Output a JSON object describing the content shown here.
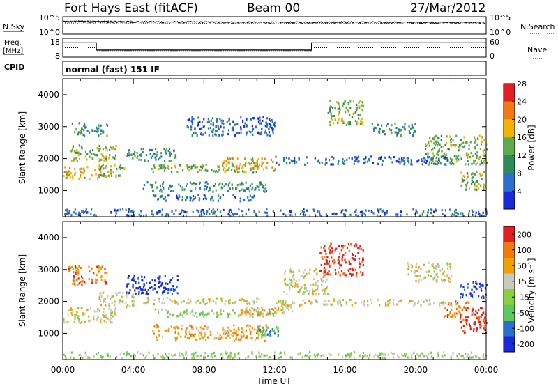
{
  "header": {
    "radar": "Fort Hays East (fitACF)",
    "beam": "Beam 00",
    "date": "27/Mar/2012",
    "mode": "normal (fast) 151 IF"
  },
  "side_labels": {
    "nsky": "N.Sky",
    "nsearch": "N.Search",
    "freq": "Freq.",
    "freq_unit": "[MHz]",
    "nave": "Nave",
    "cpid": "CPID"
  },
  "chart_data": [
    {
      "type": "line",
      "panel": "noise",
      "y_scale": "log",
      "ylim": [
        1,
        100000
      ],
      "left_ticks": [
        "10^5",
        "10^0"
      ],
      "right_ticks": [
        "10^5",
        "10^0"
      ],
      "series": [
        {
          "name": "N.Sky",
          "style": "solid",
          "x": [
            0,
            1,
            2,
            3,
            4,
            6,
            8,
            10,
            12,
            14,
            16,
            18,
            20,
            22,
            24
          ],
          "values": [
            3000,
            3500,
            3200,
            3000,
            2800,
            2400,
            2200,
            2000,
            1800,
            2000,
            2200,
            2000,
            1800,
            1700,
            1600
          ]
        },
        {
          "name": "N.Search",
          "style": "dotted",
          "x": [
            0,
            2,
            4,
            6,
            8,
            10,
            12,
            14,
            16,
            18,
            20,
            22,
            24
          ],
          "values": [
            1500,
            1600,
            1500,
            1400,
            1300,
            1200,
            1100,
            1200,
            1300,
            1200,
            1100,
            1000,
            950
          ]
        }
      ]
    },
    {
      "type": "line",
      "panel": "frequency",
      "left_ticks": [
        "18",
        "8"
      ],
      "right_ticks": [
        "60",
        "0"
      ],
      "series": [
        {
          "name": "Freq.",
          "style": "solid",
          "x": [
            0,
            1.9,
            1.9,
            14.1,
            14.1,
            24
          ],
          "values": [
            15.2,
            15.2,
            10.5,
            10.5,
            15.2,
            15.2
          ]
        },
        {
          "name": "Nave",
          "style": "dotted",
          "x": [
            0,
            1.9,
            1.9,
            14.1,
            14.1,
            24
          ],
          "values": [
            12,
            12,
            10,
            10,
            12,
            12
          ]
        }
      ]
    },
    {
      "type": "heatmap",
      "panel": "power",
      "xlabel": "",
      "ylabel": "Slant Range [km]",
      "xlim": [
        0,
        24
      ],
      "ylim": [
        180,
        4500
      ],
      "y_ticks": [
        1000,
        2000,
        3000,
        4000
      ],
      "colorbar": {
        "label": "Power [dB]",
        "ticks": [
          "4",
          "8",
          "12",
          "16",
          "20",
          "24",
          "28"
        ],
        "colors": [
          "#1a2ad8",
          "#2a6fd0",
          "#2f8a5a",
          "#5faa4a",
          "#f0b400",
          "#f07a10",
          "#e02020"
        ]
      },
      "features": [
        {
          "t0": 0.0,
          "t1": 2.2,
          "r0": 1350,
          "r1": 1750,
          "level": 4
        },
        {
          "t0": 0.4,
          "t1": 3.0,
          "r0": 1900,
          "r1": 2400,
          "level": 3
        },
        {
          "t0": 0.5,
          "t1": 2.5,
          "r0": 2700,
          "r1": 3100,
          "level": 2
        },
        {
          "t0": 2.0,
          "t1": 3.5,
          "r0": 1400,
          "r1": 1800,
          "level": 3
        },
        {
          "t0": 3.6,
          "t1": 6.5,
          "r0": 1900,
          "r1": 2300,
          "level": 2
        },
        {
          "t0": 5.0,
          "t1": 11.0,
          "r0": 1550,
          "r1": 1800,
          "level": 3
        },
        {
          "t0": 4.5,
          "t1": 11.5,
          "r0": 950,
          "r1": 1250,
          "level": 2
        },
        {
          "t0": 5.0,
          "t1": 11.0,
          "r0": 650,
          "r1": 850,
          "level": 1
        },
        {
          "t0": 9.0,
          "t1": 12.0,
          "r0": 1600,
          "r1": 2000,
          "level": 4
        },
        {
          "t0": 7.0,
          "t1": 12.0,
          "r0": 2700,
          "r1": 3300,
          "level": 1
        },
        {
          "t0": 15.0,
          "t1": 17.0,
          "r0": 3000,
          "r1": 3800,
          "level": 3
        },
        {
          "t0": 17.5,
          "t1": 20.0,
          "r0": 2700,
          "r1": 3100,
          "level": 2
        },
        {
          "t0": 20.5,
          "t1": 24.0,
          "r0": 1800,
          "r1": 2700,
          "level": 3
        },
        {
          "t0": 22.5,
          "t1": 24.0,
          "r0": 1000,
          "r1": 1600,
          "level": 3
        },
        {
          "t0": 12.0,
          "t1": 22.0,
          "r0": 1800,
          "r1": 2050,
          "level": 1
        },
        {
          "t0": 0.0,
          "t1": 24.0,
          "r0": 200,
          "r1": 400,
          "level": 1
        }
      ]
    },
    {
      "type": "heatmap",
      "panel": "velocity",
      "xlabel": "Time UT",
      "ylabel": "Slant Range [km]",
      "xlim": [
        0,
        24
      ],
      "ylim": [
        180,
        4500
      ],
      "x_ticks": [
        "00:00",
        "04:00",
        "08:00",
        "12:00",
        "16:00",
        "20:00",
        "00:00"
      ],
      "y_ticks": [
        1000,
        2000,
        3000,
        4000
      ],
      "colorbar": {
        "label": "Velocity [m s⁻¹]",
        "ticks": [
          "200",
          "100",
          "50",
          "15",
          "-15",
          "-50",
          "-100",
          "-200"
        ],
        "colors": [
          "#1a2ad8",
          "#2a6fd0",
          "#5fc85a",
          "#88d040",
          "#c8c8c0",
          "#f0a000",
          "#f07a10",
          "#e02020"
        ]
      },
      "features": [
        {
          "t0": 0.0,
          "t1": 3.0,
          "r0": 1300,
          "r1": 1800,
          "level": 4
        },
        {
          "t0": 0.3,
          "t1": 2.5,
          "r0": 2500,
          "r1": 3100,
          "level": 6
        },
        {
          "t0": 2.0,
          "t1": 4.0,
          "r0": 1800,
          "r1": 2300,
          "level": 4
        },
        {
          "t0": 3.5,
          "t1": 6.5,
          "r0": 2200,
          "r1": 2800,
          "level": 0
        },
        {
          "t0": 4.5,
          "t1": 11.5,
          "r0": 1900,
          "r1": 2100,
          "level": 4
        },
        {
          "t0": 5.0,
          "t1": 12.0,
          "r0": 1500,
          "r1": 1750,
          "level": 3
        },
        {
          "t0": 10.0,
          "t1": 12.0,
          "r0": 1550,
          "r1": 1800,
          "level": 5
        },
        {
          "t0": 5.0,
          "t1": 11.5,
          "r0": 750,
          "r1": 1250,
          "level": 5
        },
        {
          "t0": 11.0,
          "t1": 12.2,
          "r0": 900,
          "r1": 1200,
          "level": 2
        },
        {
          "t0": 12.0,
          "t1": 13.0,
          "r0": 1600,
          "r1": 2000,
          "level": 4
        },
        {
          "t0": 14.5,
          "t1": 17.0,
          "r0": 2800,
          "r1": 3800,
          "level": 7
        },
        {
          "t0": 12.5,
          "t1": 15.0,
          "r0": 2200,
          "r1": 3000,
          "level": 4
        },
        {
          "t0": 19.5,
          "t1": 22.0,
          "r0": 2600,
          "r1": 3200,
          "level": 4
        },
        {
          "t0": 22.5,
          "t1": 24.0,
          "r0": 2100,
          "r1": 2600,
          "level": 0
        },
        {
          "t0": 22.5,
          "t1": 24.0,
          "r0": 1000,
          "r1": 1800,
          "level": 7
        },
        {
          "t0": 21.5,
          "t1": 23.0,
          "r0": 1500,
          "r1": 2000,
          "level": 6
        },
        {
          "t0": 13.0,
          "t1": 22.0,
          "r0": 1850,
          "r1": 2050,
          "level": 4
        },
        {
          "t0": 0.0,
          "t1": 24.0,
          "r0": 200,
          "r1": 400,
          "level": 3
        }
      ]
    }
  ]
}
